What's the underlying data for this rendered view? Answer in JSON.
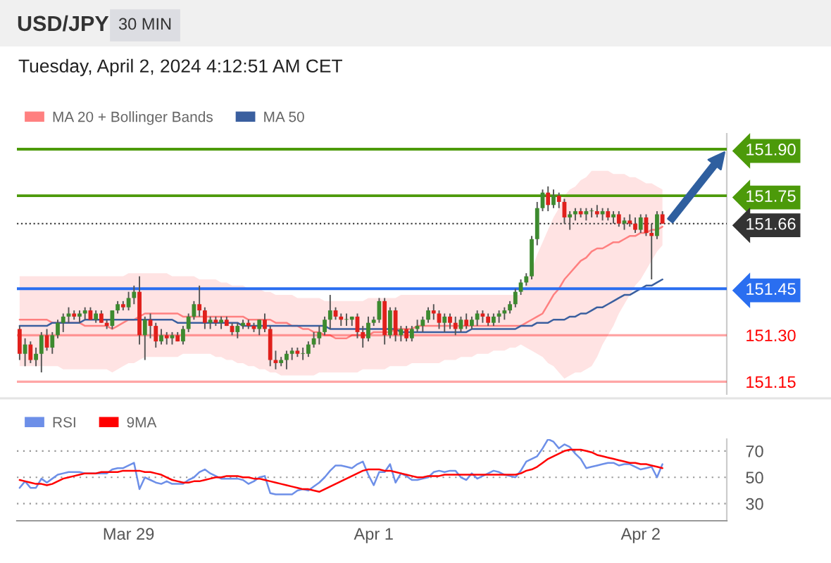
{
  "chart_data": [
    {
      "type": "candlestick",
      "title": "USD/JPY",
      "subtitle": "Tuesday, April 2, 2024 4:12:51 AM CET",
      "annotations": [
        "30 MIN"
      ],
      "categories": [
        null,
        null,
        null,
        null,
        null,
        null,
        null,
        null,
        null,
        null,
        null,
        null,
        null,
        null,
        null,
        null,
        null,
        null,
        null,
        null,
        null,
        null,
        null,
        null,
        null,
        null,
        null,
        null,
        null,
        null,
        null,
        null,
        null,
        null,
        null,
        null,
        null,
        null,
        null,
        null,
        null,
        null,
        null,
        null,
        null,
        null,
        null,
        null,
        null,
        null,
        null,
        null,
        null,
        null,
        null,
        null,
        null,
        null,
        null,
        null,
        null,
        null,
        null,
        null,
        null,
        null,
        null,
        null,
        null,
        null,
        null,
        null,
        null,
        null,
        null,
        null,
        null,
        null,
        null,
        null,
        null,
        null,
        null,
        null,
        null,
        null,
        null,
        null,
        null,
        null,
        null,
        null,
        null,
        null,
        null,
        null,
        null,
        null,
        null,
        null,
        null,
        null,
        null,
        null,
        null,
        null,
        null,
        null,
        null,
        null,
        null,
        null,
        null,
        null,
        null,
        null,
        null,
        null,
        null
      ],
      "ohlc": [
        [
          151.32,
          151.33,
          151.22,
          151.24
        ],
        [
          151.24,
          151.29,
          151.2,
          151.27
        ],
        [
          151.27,
          151.28,
          151.21,
          151.22
        ],
        [
          151.22,
          151.26,
          151.2,
          151.24
        ],
        [
          151.24,
          151.31,
          151.18,
          151.3
        ],
        [
          151.3,
          151.32,
          151.25,
          151.26
        ],
        [
          151.26,
          151.31,
          151.24,
          151.3
        ],
        [
          151.3,
          151.35,
          151.29,
          151.34
        ],
        [
          151.34,
          151.37,
          151.31,
          151.36
        ],
        [
          151.36,
          151.39,
          151.34,
          151.37
        ],
        [
          151.37,
          151.38,
          151.35,
          151.36
        ],
        [
          151.36,
          151.38,
          151.34,
          151.37
        ],
        [
          151.37,
          151.39,
          151.35,
          151.38
        ],
        [
          151.38,
          151.39,
          151.35,
          151.35
        ],
        [
          151.35,
          151.38,
          151.34,
          151.37
        ],
        [
          151.37,
          151.38,
          151.34,
          151.34
        ],
        [
          151.34,
          151.35,
          151.32,
          151.33
        ],
        [
          151.33,
          151.38,
          151.32,
          151.38
        ],
        [
          151.38,
          151.41,
          151.37,
          151.4
        ],
        [
          151.4,
          151.41,
          151.38,
          151.39
        ],
        [
          151.39,
          151.44,
          151.38,
          151.42
        ],
        [
          151.42,
          151.46,
          151.4,
          151.44
        ],
        [
          151.44,
          151.49,
          151.27,
          151.3
        ],
        [
          151.3,
          151.36,
          151.22,
          151.35
        ],
        [
          151.35,
          151.37,
          151.29,
          151.33
        ],
        [
          151.33,
          151.34,
          151.26,
          151.28
        ],
        [
          151.28,
          151.32,
          151.27,
          151.3
        ],
        [
          151.3,
          151.31,
          151.27,
          151.29
        ],
        [
          151.29,
          151.31,
          151.27,
          151.3
        ],
        [
          151.3,
          151.31,
          151.28,
          151.28
        ],
        [
          151.28,
          151.33,
          151.27,
          151.32
        ],
        [
          151.32,
          151.37,
          151.31,
          151.36
        ],
        [
          151.36,
          151.41,
          151.35,
          151.4
        ],
        [
          151.4,
          151.46,
          151.36,
          151.38
        ],
        [
          151.38,
          151.39,
          151.32,
          151.34
        ],
        [
          151.34,
          151.36,
          151.32,
          151.35
        ],
        [
          151.35,
          151.36,
          151.33,
          151.34
        ],
        [
          151.34,
          151.36,
          151.32,
          151.35
        ],
        [
          151.35,
          151.36,
          151.33,
          151.33
        ],
        [
          151.33,
          151.34,
          151.3,
          151.31
        ],
        [
          151.31,
          151.34,
          151.29,
          151.33
        ],
        [
          151.33,
          151.35,
          151.32,
          151.34
        ],
        [
          151.34,
          151.35,
          151.32,
          151.33
        ],
        [
          151.33,
          151.34,
          151.31,
          151.32
        ],
        [
          151.32,
          151.35,
          151.3,
          151.35
        ],
        [
          151.35,
          151.37,
          151.31,
          151.32
        ],
        [
          151.32,
          151.33,
          151.2,
          151.22
        ],
        [
          151.22,
          151.25,
          151.19,
          151.21
        ],
        [
          151.21,
          151.23,
          151.2,
          151.22
        ],
        [
          151.22,
          151.25,
          151.19,
          151.24
        ],
        [
          151.24,
          151.26,
          151.22,
          151.25
        ],
        [
          151.25,
          151.26,
          151.23,
          151.24
        ],
        [
          151.24,
          151.26,
          151.22,
          151.24
        ],
        [
          151.24,
          151.28,
          151.23,
          151.27
        ],
        [
          151.27,
          151.31,
          151.26,
          151.29
        ],
        [
          151.29,
          151.33,
          151.27,
          151.31
        ],
        [
          151.31,
          151.36,
          151.3,
          151.35
        ],
        [
          151.35,
          151.43,
          151.32,
          151.38
        ],
        [
          151.38,
          151.39,
          151.35,
          151.36
        ],
        [
          151.36,
          151.37,
          151.33,
          151.35
        ],
        [
          151.35,
          151.37,
          151.33,
          151.35
        ],
        [
          151.35,
          151.36,
          151.33,
          151.36
        ],
        [
          151.36,
          151.37,
          151.29,
          151.31
        ],
        [
          151.31,
          151.33,
          151.26,
          151.29
        ],
        [
          151.29,
          151.36,
          151.28,
          151.34
        ],
        [
          151.34,
          151.36,
          151.33,
          151.35
        ],
        [
          151.35,
          151.42,
          151.34,
          151.41
        ],
        [
          151.41,
          151.42,
          151.27,
          151.3
        ],
        [
          151.3,
          151.39,
          151.29,
          151.38
        ],
        [
          151.38,
          151.39,
          151.28,
          151.3
        ],
        [
          151.3,
          151.33,
          151.28,
          151.32
        ],
        [
          151.32,
          151.33,
          151.28,
          151.29
        ],
        [
          151.29,
          151.33,
          151.28,
          151.32
        ],
        [
          151.32,
          151.35,
          151.31,
          151.33
        ],
        [
          151.33,
          151.36,
          151.31,
          151.35
        ],
        [
          151.35,
          151.39,
          151.34,
          151.38
        ],
        [
          151.38,
          151.4,
          151.35,
          151.37
        ],
        [
          151.37,
          151.38,
          151.32,
          151.34
        ],
        [
          151.34,
          151.37,
          151.31,
          151.36
        ],
        [
          151.36,
          151.37,
          151.32,
          151.34
        ],
        [
          151.34,
          151.36,
          151.3,
          151.32
        ],
        [
          151.32,
          151.36,
          151.31,
          151.35
        ],
        [
          151.35,
          151.37,
          151.32,
          151.33
        ],
        [
          151.33,
          151.36,
          151.32,
          151.35
        ],
        [
          151.35,
          151.38,
          151.33,
          151.37
        ],
        [
          151.37,
          151.38,
          151.34,
          151.36
        ],
        [
          151.36,
          151.37,
          151.33,
          151.34
        ],
        [
          151.34,
          151.37,
          151.33,
          151.36
        ],
        [
          151.36,
          151.38,
          151.34,
          151.37
        ],
        [
          151.37,
          151.39,
          151.35,
          151.38
        ],
        [
          151.38,
          151.41,
          151.37,
          151.4
        ],
        [
          151.4,
          151.45,
          151.39,
          151.44
        ],
        [
          151.44,
          151.48,
          151.43,
          151.47
        ],
        [
          151.47,
          151.5,
          151.46,
          151.49
        ],
        [
          151.49,
          151.62,
          151.48,
          151.61
        ],
        [
          151.61,
          151.73,
          151.59,
          151.71
        ],
        [
          151.71,
          151.77,
          151.7,
          151.76
        ],
        [
          151.76,
          151.78,
          151.7,
          151.72
        ],
        [
          151.72,
          151.77,
          151.71,
          151.75
        ],
        [
          151.75,
          151.76,
          151.71,
          151.73
        ],
        [
          151.73,
          151.74,
          151.66,
          151.68
        ],
        [
          151.68,
          151.7,
          151.64,
          151.69
        ],
        [
          151.69,
          151.71,
          151.67,
          151.7
        ],
        [
          151.7,
          151.71,
          151.68,
          151.69
        ],
        [
          151.69,
          151.71,
          151.67,
          151.7
        ],
        [
          151.7,
          151.71,
          151.68,
          151.7
        ],
        [
          151.7,
          151.72,
          151.68,
          151.69
        ],
        [
          151.69,
          151.71,
          151.67,
          151.7
        ],
        [
          151.7,
          151.71,
          151.67,
          151.68
        ],
        [
          151.68,
          151.7,
          151.66,
          151.69
        ],
        [
          151.69,
          151.7,
          151.65,
          151.66
        ],
        [
          151.66,
          151.68,
          151.64,
          151.67
        ],
        [
          151.67,
          151.69,
          151.65,
          151.66
        ],
        [
          151.66,
          151.68,
          151.63,
          151.64
        ],
        [
          151.64,
          151.69,
          151.63,
          151.68
        ],
        [
          151.68,
          151.69,
          151.62,
          151.63
        ],
        [
          151.63,
          151.66,
          151.48,
          151.62
        ],
        [
          151.62,
          151.7,
          151.61,
          151.69
        ],
        [
          151.69,
          151.7,
          151.66,
          151.66
        ]
      ],
      "series": [
        {
          "name": "MA 20 + Bollinger Bands",
          "type": "line",
          "color": "#ff8080",
          "values": [
            151.35,
            151.35,
            151.35,
            151.35,
            151.35,
            151.35,
            151.34,
            151.34,
            151.34,
            151.34,
            151.34,
            151.34,
            151.33,
            151.33,
            151.33,
            151.33,
            151.33,
            151.32,
            151.33,
            151.34,
            151.35,
            151.35,
            151.36,
            151.37,
            151.37,
            151.37,
            151.37,
            151.37,
            151.37,
            151.37,
            151.36,
            151.36,
            151.36,
            151.36,
            151.36,
            151.36,
            151.36,
            151.36,
            151.36,
            151.36,
            151.36,
            151.36,
            151.35,
            151.35,
            151.35,
            151.35,
            151.35,
            151.34,
            151.34,
            151.34,
            151.33,
            151.33,
            151.32,
            151.32,
            151.31,
            151.31,
            151.3,
            151.3,
            151.29,
            151.29,
            151.29,
            151.3,
            151.3,
            151.3,
            151.3,
            151.31,
            151.31,
            151.31,
            151.31,
            151.32,
            151.32,
            151.32,
            151.32,
            151.33,
            151.33,
            151.33,
            151.33,
            151.33,
            151.33,
            151.33,
            151.33,
            151.33,
            151.33,
            151.33,
            151.33,
            151.33,
            151.33,
            151.33,
            151.33,
            151.33,
            151.33,
            151.33,
            151.33,
            151.34,
            151.35,
            151.36,
            151.37,
            151.4,
            151.43,
            151.45,
            151.48,
            151.5,
            151.52,
            151.54,
            151.55,
            151.57,
            151.58,
            151.58,
            151.59,
            151.6,
            151.6,
            151.61,
            151.62,
            151.62,
            151.63,
            151.63,
            151.64,
            151.64,
            151.65
          ],
          "upper": [
            151.49,
            151.49,
            151.49,
            151.49,
            151.49,
            151.49,
            151.49,
            151.49,
            151.49,
            151.49,
            151.49,
            151.49,
            151.49,
            151.49,
            151.49,
            151.49,
            151.49,
            151.49,
            151.49,
            151.49,
            151.5,
            151.5,
            151.5,
            151.5,
            151.5,
            151.5,
            151.5,
            151.5,
            151.49,
            151.49,
            151.49,
            151.49,
            151.49,
            151.48,
            151.48,
            151.48,
            151.48,
            151.47,
            151.47,
            151.46,
            151.46,
            151.46,
            151.45,
            151.45,
            151.45,
            151.44,
            151.44,
            151.43,
            151.43,
            151.43,
            151.43,
            151.42,
            151.42,
            151.42,
            151.42,
            151.42,
            151.41,
            151.41,
            151.41,
            151.41,
            151.41,
            151.41,
            151.41,
            151.41,
            151.42,
            151.42,
            151.42,
            151.42,
            151.42,
            151.42,
            151.43,
            151.43,
            151.43,
            151.43,
            151.43,
            151.43,
            151.43,
            151.43,
            151.43,
            151.43,
            151.43,
            151.43,
            151.43,
            151.43,
            151.43,
            151.43,
            151.43,
            151.43,
            151.43,
            151.43,
            151.43,
            151.43,
            151.43,
            151.47,
            151.51,
            151.56,
            151.6,
            151.64,
            151.68,
            151.71,
            151.75,
            151.77,
            151.78,
            151.8,
            151.81,
            151.83,
            151.83,
            151.83,
            151.83,
            151.82,
            151.82,
            151.82,
            151.81,
            151.81,
            151.8,
            151.79,
            151.79,
            151.78,
            151.77
          ],
          "lower": [
            151.2,
            151.2,
            151.2,
            151.2,
            151.2,
            151.2,
            151.2,
            151.2,
            151.19,
            151.19,
            151.19,
            151.19,
            151.19,
            151.19,
            151.19,
            151.19,
            151.19,
            151.18,
            151.19,
            151.2,
            151.21,
            151.21,
            151.22,
            151.23,
            151.23,
            151.23,
            151.23,
            151.23,
            151.23,
            151.23,
            151.24,
            151.24,
            151.24,
            151.24,
            151.24,
            151.24,
            151.23,
            151.23,
            151.22,
            151.22,
            151.21,
            151.21,
            151.2,
            151.2,
            151.19,
            151.19,
            151.18,
            151.18,
            151.17,
            151.17,
            151.17,
            151.17,
            151.17,
            151.17,
            151.17,
            151.18,
            151.18,
            151.18,
            151.18,
            151.18,
            151.18,
            151.18,
            151.18,
            151.19,
            151.19,
            151.19,
            151.19,
            151.19,
            151.2,
            151.2,
            151.2,
            151.2,
            151.21,
            151.21,
            151.21,
            151.21,
            151.21,
            151.21,
            151.22,
            151.22,
            151.22,
            151.23,
            151.23,
            151.23,
            151.24,
            151.24,
            151.24,
            151.25,
            151.25,
            151.25,
            151.26,
            151.26,
            151.27,
            151.26,
            151.25,
            151.24,
            151.23,
            151.21,
            151.2,
            151.18,
            151.16,
            151.17,
            151.18,
            151.18,
            151.19,
            151.2,
            151.23,
            151.27,
            151.3,
            151.33,
            151.37,
            151.4,
            151.43,
            151.46,
            151.48,
            151.51,
            151.54,
            151.57,
            151.59
          ]
        },
        {
          "name": "MA 50",
          "type": "line",
          "color": "#3a5f9f",
          "values": [
            151.33,
            151.33,
            151.33,
            151.33,
            151.33,
            151.33,
            151.34,
            151.34,
            151.34,
            151.34,
            151.34,
            151.34,
            151.35,
            151.35,
            151.35,
            151.35,
            151.35,
            151.35,
            151.35,
            151.35,
            151.35,
            151.35,
            151.35,
            151.35,
            151.35,
            151.35,
            151.35,
            151.35,
            151.35,
            151.34,
            151.34,
            151.34,
            151.34,
            151.34,
            151.34,
            151.34,
            151.34,
            151.34,
            151.34,
            151.34,
            151.34,
            151.33,
            151.33,
            151.33,
            151.33,
            151.33,
            151.33,
            151.33,
            151.33,
            151.33,
            151.33,
            151.33,
            151.33,
            151.33,
            151.33,
            151.33,
            151.33,
            151.32,
            151.32,
            151.32,
            151.32,
            151.32,
            151.32,
            151.32,
            151.32,
            151.32,
            151.32,
            151.32,
            151.32,
            151.32,
            151.31,
            151.31,
            151.31,
            151.31,
            151.31,
            151.31,
            151.31,
            151.31,
            151.31,
            151.31,
            151.31,
            151.31,
            151.31,
            151.32,
            151.32,
            151.32,
            151.32,
            151.32,
            151.32,
            151.32,
            151.32,
            151.32,
            151.33,
            151.33,
            151.33,
            151.34,
            151.34,
            151.34,
            151.35,
            151.35,
            151.35,
            151.36,
            151.36,
            151.37,
            151.37,
            151.38,
            151.39,
            151.39,
            151.4,
            151.41,
            151.42,
            151.43,
            151.43,
            151.44,
            151.45,
            151.46,
            151.46,
            151.47,
            151.48
          ]
        }
      ],
      "ref_lines": [
        {
          "axis": "y",
          "value": 151.9,
          "color": "#4c9a0a",
          "line_style": "solid"
        },
        {
          "axis": "y",
          "value": 151.75,
          "color": "#4c9a0a",
          "line_style": "solid"
        },
        {
          "axis": "y",
          "value": 151.66,
          "color": "#333333",
          "line_style": "dotted"
        },
        {
          "axis": "y",
          "value": 151.45,
          "color": "#2a6ef0",
          "line_style": "solid"
        },
        {
          "axis": "y",
          "value": 151.3,
          "color": "#ff0000",
          "line_style": "solid"
        },
        {
          "axis": "y",
          "value": 151.15,
          "color": "#ff0000",
          "line_style": "solid"
        }
      ],
      "ylim": [
        151.11,
        151.95
      ],
      "yticks": [
        {
          "value": 151.9,
          "label": "151.90"
        },
        151.75,
        151.66,
        151.45,
        {
          "value": 151.3,
          "label": "151.30"
        },
        151.15
      ],
      "tick_labels": "y",
      "legend": "top left"
    },
    {
      "type": "line",
      "categories": [
        null,
        null,
        null,
        null,
        null,
        null,
        null,
        null,
        null,
        null,
        null,
        null,
        null,
        null,
        null,
        null,
        null,
        null,
        null,
        null,
        "Mar 29",
        null,
        null,
        null,
        null,
        null,
        null,
        null,
        null,
        null,
        null,
        null,
        null,
        null,
        null,
        null,
        null,
        null,
        null,
        null,
        null,
        null,
        null,
        null,
        null,
        null,
        null,
        null,
        null,
        null,
        null,
        null,
        null,
        null,
        null,
        null,
        null,
        null,
        null,
        null,
        null,
        null,
        null,
        null,
        null,
        "Apr 1",
        null,
        null,
        null,
        null,
        null,
        null,
        null,
        null,
        null,
        null,
        null,
        null,
        null,
        null,
        null,
        null,
        null,
        null,
        null,
        null,
        null,
        null,
        null,
        null,
        null,
        null,
        null,
        null,
        null,
        null,
        null,
        null,
        null,
        null,
        null,
        null,
        null,
        null,
        null,
        null,
        null,
        null,
        null,
        null,
        null,
        null,
        null,
        null,
        "Apr 2",
        null,
        null,
        null,
        null
      ],
      "series": [
        {
          "name": "RSI",
          "color": "#6d8fe8",
          "values": [
            42,
            47,
            42,
            42,
            49,
            46,
            49,
            52,
            53,
            54,
            54,
            54,
            53,
            53,
            53,
            53,
            53,
            56,
            57,
            57,
            59,
            61,
            41,
            50,
            48,
            46,
            45,
            47,
            45,
            45,
            45,
            48,
            50,
            54,
            56,
            53,
            51,
            49,
            49,
            49,
            49,
            48,
            45,
            47,
            50,
            51,
            38,
            37,
            37,
            37,
            37,
            40,
            41,
            40,
            43,
            46,
            50,
            55,
            59,
            59,
            58,
            57,
            60,
            62,
            52,
            44,
            54,
            54,
            60,
            46,
            53,
            51,
            48,
            48,
            49,
            50,
            54,
            55,
            54,
            55,
            55,
            50,
            48,
            53,
            49,
            51,
            53,
            55,
            54,
            52,
            51,
            50,
            55,
            62,
            64,
            66,
            72,
            79,
            77,
            72,
            75,
            73,
            68,
            64,
            57,
            58,
            59,
            60,
            61,
            61,
            59,
            60,
            60,
            58,
            56,
            57,
            58,
            50,
            60
          ]
        },
        {
          "name": "9MA",
          "color": "#ff0000",
          "values": [
            48,
            47,
            46,
            45,
            45,
            44,
            45,
            47,
            49,
            50,
            51,
            52,
            53,
            53,
            53,
            54,
            54,
            54,
            54,
            55,
            55,
            55,
            55,
            54,
            54,
            53,
            52,
            50,
            48,
            47,
            46,
            46,
            47,
            47,
            48,
            49,
            50,
            50,
            51,
            51,
            51,
            50,
            50,
            49,
            49,
            48,
            47,
            46,
            45,
            44,
            43,
            42,
            41,
            41,
            40,
            39,
            41,
            43,
            45,
            47,
            49,
            51,
            53,
            55,
            56,
            56,
            56,
            55,
            55,
            54,
            53,
            52,
            51,
            50,
            50,
            51,
            51,
            51,
            52,
            52,
            52,
            52,
            52,
            52,
            52,
            52,
            52,
            52,
            52,
            52,
            52,
            52,
            53,
            55,
            56,
            58,
            61,
            64,
            66,
            68,
            70,
            71,
            71,
            71,
            70,
            69,
            67,
            66,
            65,
            64,
            63,
            62,
            61,
            61,
            60,
            60,
            59,
            58,
            57
          ]
        }
      ],
      "ylim": [
        17,
        79
      ],
      "yticks": [
        30,
        50,
        70
      ],
      "grid": "y",
      "legend": "top left"
    }
  ]
}
